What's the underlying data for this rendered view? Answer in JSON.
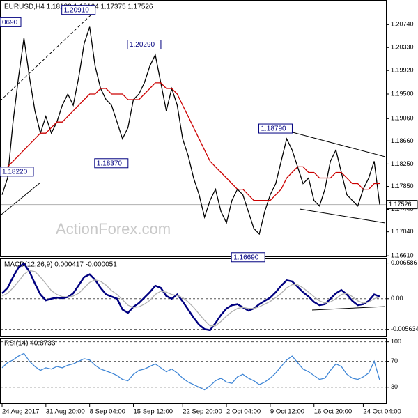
{
  "chart_data": [
    {
      "type": "line",
      "title": "EURUSD,H4  1.18133 1.18164 1.17375 1.17526",
      "watermark": "ActionForex.com",
      "xlim": [
        0,
        69
      ],
      "ylim": [
        1.166,
        1.2118
      ],
      "yticks": [
        {
          "value": 1.1661,
          "label": "1.16610"
        },
        {
          "value": 1.1704,
          "label": "1.17040"
        },
        {
          "value": 1.1744,
          "label": "1.17440"
        },
        {
          "value": 1.1785,
          "label": "1.17850"
        },
        {
          "value": 1.1825,
          "label": "1.18250"
        },
        {
          "value": 1.1866,
          "label": "1.18660"
        },
        {
          "value": 1.1906,
          "label": "1.19060"
        },
        {
          "value": 1.195,
          "label": "1.19500"
        },
        {
          "value": 1.1992,
          "label": "1.19920"
        },
        {
          "value": 1.2033,
          "label": "1.20330"
        },
        {
          "value": 1.2074,
          "label": "1.20740"
        }
      ],
      "current_price": {
        "value": 1.17526,
        "label": "1.17526"
      },
      "annotations": [
        {
          "label": "0690",
          "x": 0,
          "y": 1.2069
        },
        {
          "label": "1.18220",
          "x": 1,
          "y": 1.1822
        },
        {
          "label": "1.20910",
          "x": 16,
          "y": 1.2091
        },
        {
          "label": "1.20290",
          "x": 28,
          "y": 1.2029
        },
        {
          "label": "1.18370",
          "x": 22,
          "y": 1.1837
        },
        {
          "label": "1.18790",
          "x": 52,
          "y": 1.1879
        },
        {
          "label": "1.16690",
          "x": 47,
          "y": 1.1669
        }
      ],
      "series": [
        {
          "color": "#000000",
          "values": [
            1.177,
            1.18,
            1.19,
            1.198,
            1.205,
            1.198,
            1.192,
            1.188,
            1.191,
            1.188,
            1.19,
            1.193,
            1.195,
            1.193,
            1.198,
            1.204,
            1.207,
            1.2,
            1.196,
            1.194,
            1.193,
            1.19,
            1.187,
            1.189,
            1.194,
            1.195,
            1.197,
            1.2,
            1.202,
            1.197,
            1.192,
            1.196,
            1.193,
            1.187,
            1.184,
            1.18,
            1.177,
            1.173,
            1.176,
            1.178,
            1.174,
            1.172,
            1.176,
            1.178,
            1.177,
            1.174,
            1.171,
            1.17,
            1.174,
            1.177,
            1.179,
            1.183,
            1.187,
            1.185,
            1.182,
            1.179,
            1.18,
            1.176,
            1.175,
            1.178,
            1.183,
            1.185,
            1.181,
            1.177,
            1.176,
            1.175,
            1.178,
            1.18,
            1.183,
            1.17526
          ]
        },
        {
          "color": "#cc0000",
          "values": [
            1.181,
            1.182,
            1.183,
            1.184,
            1.185,
            1.186,
            1.187,
            1.188,
            1.188,
            1.189,
            1.19,
            1.19,
            1.191,
            1.192,
            1.193,
            1.194,
            1.195,
            1.195,
            1.196,
            1.196,
            1.195,
            1.195,
            1.195,
            1.194,
            1.194,
            1.194,
            1.195,
            1.196,
            1.197,
            1.197,
            1.196,
            1.196,
            1.195,
            1.193,
            1.191,
            1.189,
            1.187,
            1.185,
            1.183,
            1.182,
            1.181,
            1.18,
            1.179,
            1.178,
            1.178,
            1.177,
            1.176,
            1.176,
            1.176,
            1.176,
            1.177,
            1.178,
            1.18,
            1.181,
            1.182,
            1.182,
            1.181,
            1.181,
            1.18,
            1.18,
            1.18,
            1.181,
            1.181,
            1.18,
            1.179,
            1.179,
            1.178,
            1.178,
            1.179,
            1.179
          ]
        }
      ]
    },
    {
      "type": "line",
      "title": "MACD(12,26,9) 0.000417 -0.000051",
      "xlim": [
        0,
        69
      ],
      "ylim": [
        -0.0071,
        0.0073
      ],
      "grid": true,
      "yticks": [
        -0.005634,
        {
          "value": 0,
          "label": "0.00"
        },
        0.006586
      ],
      "series": [
        {
          "color": "#000080",
          "values": [
            0.001,
            0.002,
            0.004,
            0.0058,
            0.0065,
            0.005,
            0.0028,
            0.0008,
            -0.0003,
            0.0,
            0.0002,
            0.0001,
            0.0003,
            0.001,
            0.0025,
            0.004,
            0.0045,
            0.0035,
            0.002,
            0.0008,
            0.0004,
            0.0,
            -0.002,
            -0.0026,
            -0.0015,
            -0.0008,
            0.0002,
            0.0012,
            0.0024,
            0.002,
            0.0005,
            0.0,
            0.0008,
            -0.0005,
            -0.002,
            -0.0035,
            -0.0048,
            -0.0056,
            -0.0058,
            -0.0045,
            -0.003,
            -0.0018,
            -0.0012,
            -0.001,
            -0.0016,
            -0.0022,
            -0.0018,
            -0.001,
            -0.0004,
            0.0002,
            0.0012,
            0.0024,
            0.0034,
            0.0032,
            0.0022,
            0.0012,
            0.0004,
            -0.0006,
            -0.0012,
            -0.001,
            0.0,
            0.001,
            0.0016,
            0.0008,
            -0.0004,
            -0.0012,
            -0.001,
            -0.0004,
            0.0008,
            0.0004
          ]
        },
        {
          "color": "#b0b0b0",
          "values": [
            0.0005,
            0.001,
            0.002,
            0.0032,
            0.0045,
            0.0052,
            0.005,
            0.004,
            0.0028,
            0.0015,
            0.0008,
            0.0004,
            0.0003,
            0.0005,
            0.001,
            0.002,
            0.003,
            0.0035,
            0.0032,
            0.0025,
            0.0015,
            0.0008,
            -0.0002,
            -0.0012,
            -0.0016,
            -0.0015,
            -0.001,
            -0.0003,
            0.0008,
            0.0014,
            0.0012,
            0.0008,
            0.0006,
            0.0002,
            -0.0006,
            -0.0016,
            -0.0028,
            -0.004,
            -0.005,
            -0.005,
            -0.0042,
            -0.0032,
            -0.0024,
            -0.0018,
            -0.0016,
            -0.0018,
            -0.0018,
            -0.0015,
            -0.001,
            -0.0005,
            0.0002,
            0.001,
            0.002,
            0.0026,
            0.0026,
            0.002,
            0.0012,
            0.0004,
            -0.0004,
            -0.0008,
            -0.0006,
            0.0,
            0.0008,
            0.001,
            0.0004,
            -0.0004,
            -0.0008,
            -0.0006,
            0.0,
            0.0003
          ]
        }
      ]
    },
    {
      "type": "line",
      "title": "RSI(14) 40.8733",
      "xlim": [
        0,
        69
      ],
      "ylim": [
        4,
        105
      ],
      "grid": true,
      "yticks": [
        30,
        70,
        100
      ],
      "xticks": [
        {
          "value": 0,
          "label": "24 Aug 2017"
        },
        {
          "value": 8,
          "label": "31 Aug 20:00"
        },
        {
          "value": 16,
          "label": "8 Sep 04:00"
        },
        {
          "value": 24,
          "label": "15 Sep 12:00"
        },
        {
          "value": 33,
          "label": "22 Sep 20:00"
        },
        {
          "value": 41,
          "label": "2 Oct 04:00"
        },
        {
          "value": 49,
          "label": "9 Oct 12:00"
        },
        {
          "value": 57,
          "label": "16 Oct 20:00"
        },
        {
          "value": 66,
          "label": "24 Oct 04:00"
        }
      ],
      "series": [
        {
          "color": "#3f86d6",
          "values": [
            60,
            68,
            72,
            78,
            82,
            70,
            62,
            56,
            60,
            58,
            62,
            60,
            64,
            66,
            70,
            74,
            72,
            64,
            58,
            55,
            52,
            48,
            42,
            40,
            50,
            56,
            58,
            62,
            66,
            60,
            54,
            58,
            52,
            44,
            38,
            34,
            30,
            26,
            32,
            40,
            44,
            38,
            36,
            46,
            50,
            44,
            40,
            34,
            38,
            44,
            52,
            62,
            72,
            78,
            68,
            58,
            54,
            48,
            42,
            44,
            56,
            66,
            62,
            50,
            44,
            42,
            46,
            52,
            70,
            41
          ]
        }
      ]
    }
  ]
}
